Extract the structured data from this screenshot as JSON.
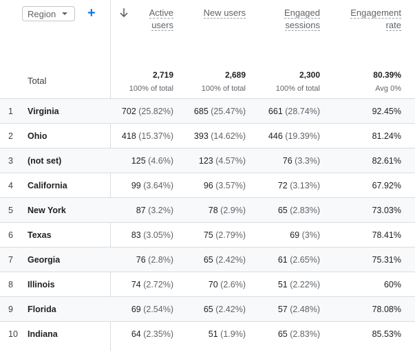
{
  "dimension": {
    "label": "Region"
  },
  "headers": [
    {
      "line1": "Active",
      "line2": "users"
    },
    {
      "line1": "New users",
      "line2": ""
    },
    {
      "line1": "Engaged",
      "line2": "sessions"
    },
    {
      "line1": "Engagement",
      "line2": "rate"
    }
  ],
  "total": {
    "label": "Total",
    "values": [
      "2,719",
      "2,689",
      "2,300",
      "80.39%"
    ],
    "subs": [
      "100% of total",
      "100% of total",
      "100% of total",
      "Avg 0%"
    ]
  },
  "rows": [
    {
      "idx": "1",
      "name": "Virginia",
      "active": "702",
      "active_pct": "(25.82%)",
      "new": "685",
      "new_pct": "(25.47%)",
      "engaged": "661",
      "engaged_pct": "(28.74%)",
      "rate": "92.45%"
    },
    {
      "idx": "2",
      "name": "Ohio",
      "active": "418",
      "active_pct": "(15.37%)",
      "new": "393",
      "new_pct": "(14.62%)",
      "engaged": "446",
      "engaged_pct": "(19.39%)",
      "rate": "81.24%"
    },
    {
      "idx": "3",
      "name": "(not set)",
      "active": "125",
      "active_pct": "(4.6%)",
      "new": "123",
      "new_pct": "(4.57%)",
      "engaged": "76",
      "engaged_pct": "(3.3%)",
      "rate": "82.61%"
    },
    {
      "idx": "4",
      "name": "California",
      "active": "99",
      "active_pct": "(3.64%)",
      "new": "96",
      "new_pct": "(3.57%)",
      "engaged": "72",
      "engaged_pct": "(3.13%)",
      "rate": "67.92%"
    },
    {
      "idx": "5",
      "name": "New York",
      "active": "87",
      "active_pct": "(3.2%)",
      "new": "78",
      "new_pct": "(2.9%)",
      "engaged": "65",
      "engaged_pct": "(2.83%)",
      "rate": "73.03%"
    },
    {
      "idx": "6",
      "name": "Texas",
      "active": "83",
      "active_pct": "(3.05%)",
      "new": "75",
      "new_pct": "(2.79%)",
      "engaged": "69",
      "engaged_pct": "(3%)",
      "rate": "78.41%"
    },
    {
      "idx": "7",
      "name": "Georgia",
      "active": "76",
      "active_pct": "(2.8%)",
      "new": "65",
      "new_pct": "(2.42%)",
      "engaged": "61",
      "engaged_pct": "(2.65%)",
      "rate": "75.31%"
    },
    {
      "idx": "8",
      "name": "Illinois",
      "active": "74",
      "active_pct": "(2.72%)",
      "new": "70",
      "new_pct": "(2.6%)",
      "engaged": "51",
      "engaged_pct": "(2.22%)",
      "rate": "60%"
    },
    {
      "idx": "9",
      "name": "Florida",
      "active": "69",
      "active_pct": "(2.54%)",
      "new": "65",
      "new_pct": "(2.42%)",
      "engaged": "57",
      "engaged_pct": "(2.48%)",
      "rate": "78.08%"
    },
    {
      "idx": "10",
      "name": "Indiana",
      "active": "64",
      "active_pct": "(2.35%)",
      "new": "51",
      "new_pct": "(1.9%)",
      "engaged": "65",
      "engaged_pct": "(2.83%)",
      "rate": "85.53%"
    }
  ]
}
